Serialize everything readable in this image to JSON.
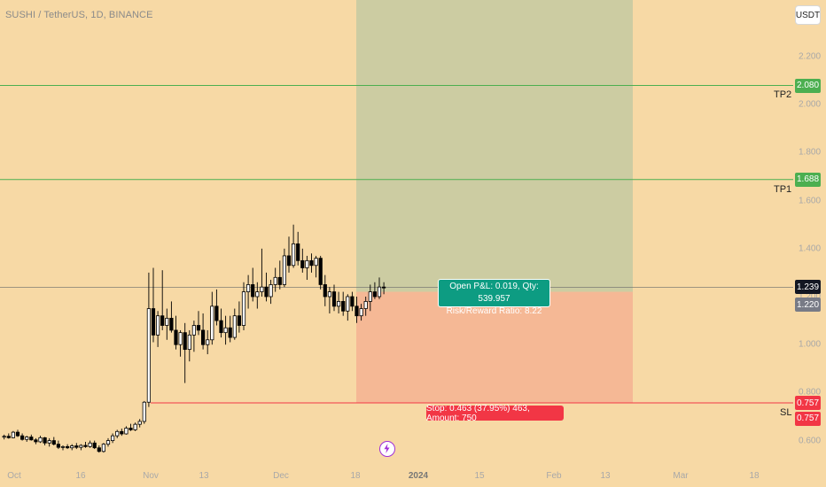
{
  "header": {
    "symbol_title": "SUSHI / TetherUS, 1D, BINANCE"
  },
  "currency_button": "USDT",
  "colors": {
    "background": "#f7d9a5",
    "profit_zone": "#c7ccA2",
    "loss_zone": "#f4b693",
    "up_candle": "#ffffff",
    "down_candle": "#000000",
    "tp_line": "#4caf50",
    "sl_line": "#f23645",
    "pnl_box": "#0d9c82",
    "stop_box": "#f23645"
  },
  "y_axis": {
    "ticks": [
      "2.200",
      "2.000",
      "1.800",
      "1.600",
      "1.400",
      "1.200",
      "1.000",
      "0.800",
      "0.600"
    ]
  },
  "x_axis": {
    "ticks": [
      {
        "label": "Oct",
        "bold": false
      },
      {
        "label": "16",
        "bold": false
      },
      {
        "label": "Nov",
        "bold": false
      },
      {
        "label": "13",
        "bold": false
      },
      {
        "label": "Dec",
        "bold": false
      },
      {
        "label": "18",
        "bold": false
      },
      {
        "label": "2024",
        "bold": true
      },
      {
        "label": "15",
        "bold": false
      },
      {
        "label": "Feb",
        "bold": false
      },
      {
        "label": "13",
        "bold": false
      },
      {
        "label": "Mar",
        "bold": false
      },
      {
        "label": "18",
        "bold": false
      }
    ]
  },
  "levels": {
    "tp2": {
      "label": "TP2",
      "price": "2.080",
      "value": 2.08
    },
    "tp1": {
      "label": "TP1",
      "price": "1.688",
      "value": 1.688
    },
    "sl": {
      "label": "SL",
      "price": "0.757",
      "value": 0.757
    },
    "last_price": {
      "price": "1.239",
      "value": 1.239
    },
    "entry_price": {
      "price": "1.220",
      "value": 1.22
    },
    "sl_second": {
      "price": "0.757",
      "value": 0.757
    }
  },
  "position": {
    "pnl_line1": "Open P&L: 0.019, Qty: 539.957",
    "pnl_line2": "Risk/Reward Ratio: 8.22",
    "stop_text": "Stop: 0.463 (37.95%) 463, Amount: 750"
  },
  "chart_data": {
    "type": "candlestick",
    "title": "SUSHI / TetherUS, 1D, BINANCE",
    "x": [
      "Oct",
      "16",
      "Nov",
      "13",
      "Dec",
      "18",
      "2024",
      "15",
      "Feb",
      "13",
      "Mar",
      "18"
    ],
    "ylim": [
      0.55,
      2.42
    ],
    "ohlc": [
      [
        0.615,
        0.625,
        0.605,
        0.618
      ],
      [
        0.618,
        0.63,
        0.608,
        0.612
      ],
      [
        0.612,
        0.64,
        0.61,
        0.635
      ],
      [
        0.635,
        0.645,
        0.615,
        0.62
      ],
      [
        0.62,
        0.63,
        0.6,
        0.605
      ],
      [
        0.605,
        0.62,
        0.595,
        0.615
      ],
      [
        0.615,
        0.625,
        0.6,
        0.603
      ],
      [
        0.603,
        0.61,
        0.585,
        0.595
      ],
      [
        0.595,
        0.62,
        0.59,
        0.612
      ],
      [
        0.612,
        0.615,
        0.58,
        0.59
      ],
      [
        0.59,
        0.61,
        0.575,
        0.6
      ],
      [
        0.6,
        0.615,
        0.58,
        0.585
      ],
      [
        0.585,
        0.6,
        0.565,
        0.572
      ],
      [
        0.572,
        0.58,
        0.56,
        0.575
      ],
      [
        0.575,
        0.585,
        0.565,
        0.57
      ],
      [
        0.57,
        0.585,
        0.56,
        0.578
      ],
      [
        0.578,
        0.59,
        0.565,
        0.572
      ],
      [
        0.572,
        0.585,
        0.56,
        0.58
      ],
      [
        0.58,
        0.595,
        0.57,
        0.575
      ],
      [
        0.575,
        0.6,
        0.57,
        0.59
      ],
      [
        0.59,
        0.6,
        0.565,
        0.57
      ],
      [
        0.57,
        0.58,
        0.55,
        0.555
      ],
      [
        0.555,
        0.59,
        0.55,
        0.585
      ],
      [
        0.585,
        0.61,
        0.575,
        0.6
      ],
      [
        0.6,
        0.63,
        0.59,
        0.62
      ],
      [
        0.62,
        0.645,
        0.61,
        0.638
      ],
      [
        0.638,
        0.65,
        0.62,
        0.628
      ],
      [
        0.628,
        0.66,
        0.625,
        0.652
      ],
      [
        0.652,
        0.67,
        0.64,
        0.645
      ],
      [
        0.645,
        0.675,
        0.64,
        0.668
      ],
      [
        0.668,
        0.69,
        0.655,
        0.68
      ],
      [
        0.68,
        0.765,
        0.67,
        0.76
      ],
      [
        0.76,
        1.3,
        0.74,
        1.15
      ],
      [
        1.15,
        1.32,
        1.01,
        1.04
      ],
      [
        1.04,
        1.14,
        0.99,
        1.12
      ],
      [
        1.12,
        1.31,
        1.06,
        1.08
      ],
      [
        1.08,
        1.15,
        1.02,
        1.11
      ],
      [
        1.11,
        1.18,
        1.05,
        1.06
      ],
      [
        1.06,
        1.12,
        0.98,
        1.0
      ],
      [
        1.0,
        1.06,
        0.95,
        1.05
      ],
      [
        1.05,
        1.09,
        0.84,
        0.98
      ],
      [
        0.98,
        1.06,
        0.93,
        1.04
      ],
      [
        1.04,
        1.1,
        0.97,
        1.08
      ],
      [
        1.08,
        1.14,
        1.04,
        1.06
      ],
      [
        1.06,
        1.13,
        0.98,
        1.0
      ],
      [
        1.0,
        1.06,
        0.96,
        1.02
      ],
      [
        1.02,
        1.22,
        1.0,
        1.16
      ],
      [
        1.16,
        1.23,
        1.08,
        1.1
      ],
      [
        1.1,
        1.15,
        1.03,
        1.05
      ],
      [
        1.05,
        1.12,
        1.0,
        1.07
      ],
      [
        1.07,
        1.12,
        1.01,
        1.03
      ],
      [
        1.03,
        1.15,
        1.02,
        1.12
      ],
      [
        1.12,
        1.18,
        1.05,
        1.08
      ],
      [
        1.08,
        1.26,
        1.06,
        1.22
      ],
      [
        1.22,
        1.29,
        1.15,
        1.25
      ],
      [
        1.25,
        1.32,
        1.18,
        1.2
      ],
      [
        1.2,
        1.26,
        1.15,
        1.22
      ],
      [
        1.22,
        1.4,
        1.2,
        1.24
      ],
      [
        1.24,
        1.3,
        1.18,
        1.2
      ],
      [
        1.2,
        1.27,
        1.17,
        1.25
      ],
      [
        1.25,
        1.32,
        1.22,
        1.28
      ],
      [
        1.28,
        1.35,
        1.23,
        1.25
      ],
      [
        1.25,
        1.4,
        1.24,
        1.37
      ],
      [
        1.37,
        1.45,
        1.3,
        1.33
      ],
      [
        1.33,
        1.5,
        1.32,
        1.42
      ],
      [
        1.42,
        1.47,
        1.33,
        1.35
      ],
      [
        1.35,
        1.4,
        1.3,
        1.32
      ],
      [
        1.32,
        1.37,
        1.27,
        1.35
      ],
      [
        1.35,
        1.38,
        1.3,
        1.33
      ],
      [
        1.33,
        1.37,
        1.28,
        1.36
      ],
      [
        1.36,
        1.37,
        1.23,
        1.25
      ],
      [
        1.25,
        1.29,
        1.16,
        1.2
      ],
      [
        1.2,
        1.24,
        1.13,
        1.22
      ],
      [
        1.22,
        1.25,
        1.14,
        1.16
      ],
      [
        1.16,
        1.22,
        1.13,
        1.18
      ],
      [
        1.18,
        1.22,
        1.12,
        1.14
      ],
      [
        1.14,
        1.21,
        1.1,
        1.2
      ],
      [
        1.2,
        1.22,
        1.14,
        1.16
      ],
      [
        1.16,
        1.2,
        1.09,
        1.12
      ],
      [
        1.12,
        1.17,
        1.1,
        1.15
      ],
      [
        1.15,
        1.2,
        1.12,
        1.18
      ],
      [
        1.18,
        1.25,
        1.14,
        1.22
      ],
      [
        1.22,
        1.26,
        1.19,
        1.2
      ],
      [
        1.2,
        1.28,
        1.19,
        1.24
      ],
      [
        1.24,
        1.26,
        1.21,
        1.239
      ]
    ]
  }
}
